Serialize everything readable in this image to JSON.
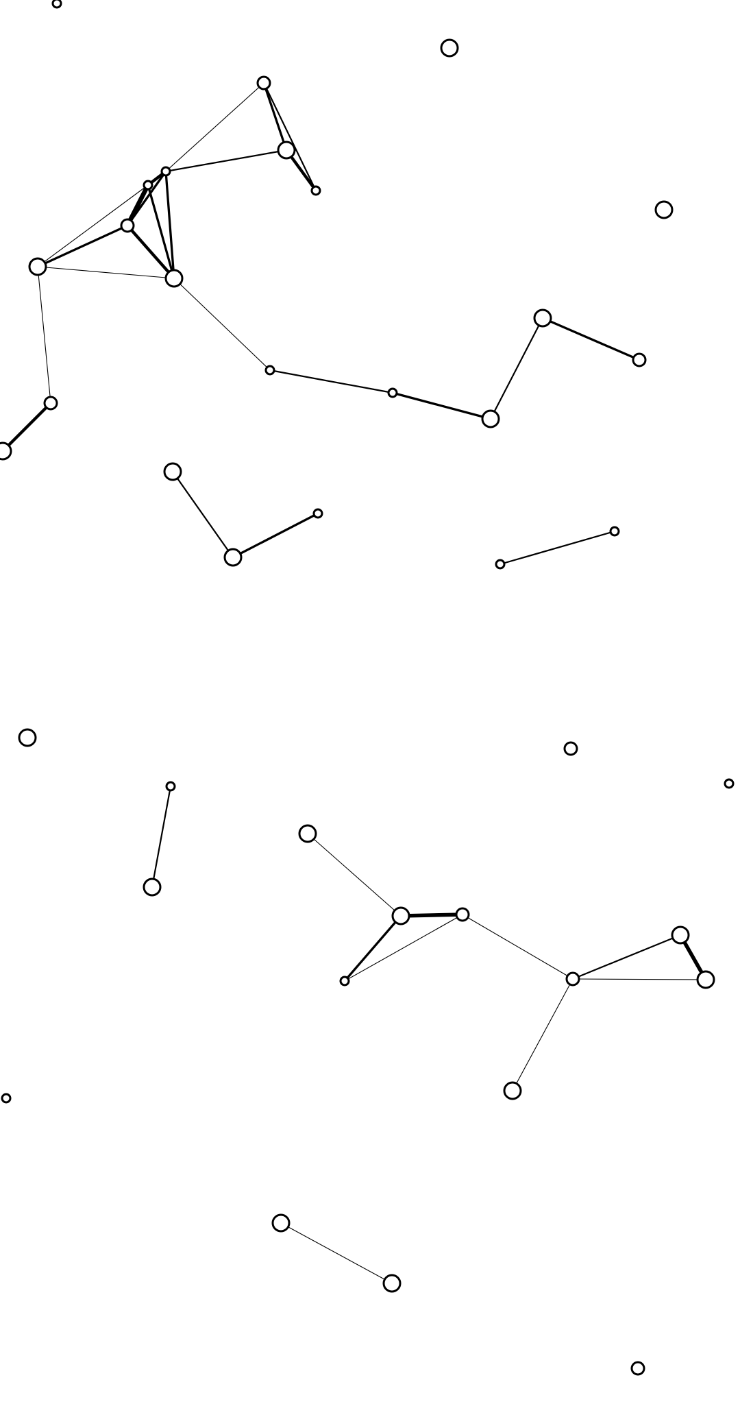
{
  "colors": {
    "background": "#ffffff",
    "stroke": "#000000",
    "node_fill": "#ffffff"
  },
  "node_size_scale": [
    "small",
    "medium",
    "large"
  ],
  "nodes": [
    {
      "id": "n01",
      "size": "small"
    },
    {
      "id": "n02",
      "size": "large"
    },
    {
      "id": "n03",
      "size": "medium"
    },
    {
      "id": "n04",
      "size": "large"
    },
    {
      "id": "n05",
      "size": "small"
    },
    {
      "id": "n06",
      "size": "large"
    },
    {
      "id": "n07",
      "size": "small"
    },
    {
      "id": "n08",
      "size": "small"
    },
    {
      "id": "n09",
      "size": "medium"
    },
    {
      "id": "n10",
      "size": "large"
    },
    {
      "id": "n11",
      "size": "large"
    },
    {
      "id": "n12",
      "size": "large"
    },
    {
      "id": "n13",
      "size": "small"
    },
    {
      "id": "n14",
      "size": "medium"
    },
    {
      "id": "n15",
      "size": "large"
    },
    {
      "id": "n16",
      "size": "large"
    },
    {
      "id": "n17",
      "size": "small"
    },
    {
      "id": "n18",
      "size": "medium"
    },
    {
      "id": "n19",
      "size": "large"
    },
    {
      "id": "n20",
      "size": "large"
    },
    {
      "id": "n21",
      "size": "small"
    },
    {
      "id": "n22",
      "size": "small"
    },
    {
      "id": "n23",
      "size": "small"
    },
    {
      "id": "n24",
      "size": "large"
    },
    {
      "id": "n25",
      "size": "medium"
    },
    {
      "id": "n26",
      "size": "small"
    },
    {
      "id": "n27",
      "size": "small"
    },
    {
      "id": "n28",
      "size": "large"
    },
    {
      "id": "n29",
      "size": "large"
    },
    {
      "id": "n30",
      "size": "large"
    },
    {
      "id": "n31",
      "size": "medium"
    },
    {
      "id": "n32",
      "size": "small"
    },
    {
      "id": "n33",
      "size": "medium"
    },
    {
      "id": "n34",
      "size": "large"
    },
    {
      "id": "n35",
      "size": "large"
    },
    {
      "id": "n36",
      "size": "large"
    },
    {
      "id": "n37",
      "size": "small"
    },
    {
      "id": "n38",
      "size": "large"
    },
    {
      "id": "n39",
      "size": "large"
    },
    {
      "id": "n40",
      "size": "medium"
    }
  ],
  "edges": [
    {
      "source": "n03",
      "target": "n04",
      "weight": 3
    },
    {
      "source": "n03",
      "target": "n05",
      "weight": 2
    },
    {
      "source": "n03",
      "target": "n07",
      "weight": 1
    },
    {
      "source": "n04",
      "target": "n05",
      "weight": 4
    },
    {
      "source": "n04",
      "target": "n07",
      "weight": 2
    },
    {
      "source": "n07",
      "target": "n08",
      "weight": 4
    },
    {
      "source": "n07",
      "target": "n09",
      "weight": 3
    },
    {
      "source": "n07",
      "target": "n10",
      "weight": 3
    },
    {
      "source": "n08",
      "target": "n09",
      "weight": 6
    },
    {
      "source": "n08",
      "target": "n10",
      "weight": 3
    },
    {
      "source": "n09",
      "target": "n10",
      "weight": 4
    },
    {
      "source": "n09",
      "target": "n11",
      "weight": 3
    },
    {
      "source": "n08",
      "target": "n11",
      "weight": 1
    },
    {
      "source": "n11",
      "target": "n10",
      "weight": 1
    },
    {
      "source": "n11",
      "target": "n14",
      "weight": 1
    },
    {
      "source": "n14",
      "target": "n15",
      "weight": 4
    },
    {
      "source": "n10",
      "target": "n13",
      "weight": 1
    },
    {
      "source": "n13",
      "target": "n17",
      "weight": 2
    },
    {
      "source": "n17",
      "target": "n16",
      "weight": 3
    },
    {
      "source": "n16",
      "target": "n12",
      "weight": 2
    },
    {
      "source": "n12",
      "target": "n18",
      "weight": 3
    },
    {
      "source": "n19",
      "target": "n20",
      "weight": 2
    },
    {
      "source": "n20",
      "target": "n21",
      "weight": 3
    },
    {
      "source": "n22",
      "target": "n23",
      "weight": 2
    },
    {
      "source": "n26",
      "target": "n29",
      "weight": 2
    },
    {
      "source": "n28",
      "target": "n30",
      "weight": 1
    },
    {
      "source": "n30",
      "target": "n31",
      "weight": 5
    },
    {
      "source": "n30",
      "target": "n32",
      "weight": 3
    },
    {
      "source": "n31",
      "target": "n32",
      "weight": 1
    },
    {
      "source": "n31",
      "target": "n33",
      "weight": 1
    },
    {
      "source": "n33",
      "target": "n34",
      "weight": 2
    },
    {
      "source": "n34",
      "target": "n35",
      "weight": 5
    },
    {
      "source": "n33",
      "target": "n35",
      "weight": 1
    },
    {
      "source": "n33",
      "target": "n36",
      "weight": 1
    },
    {
      "source": "n38",
      "target": "n39",
      "weight": 1
    }
  ]
}
